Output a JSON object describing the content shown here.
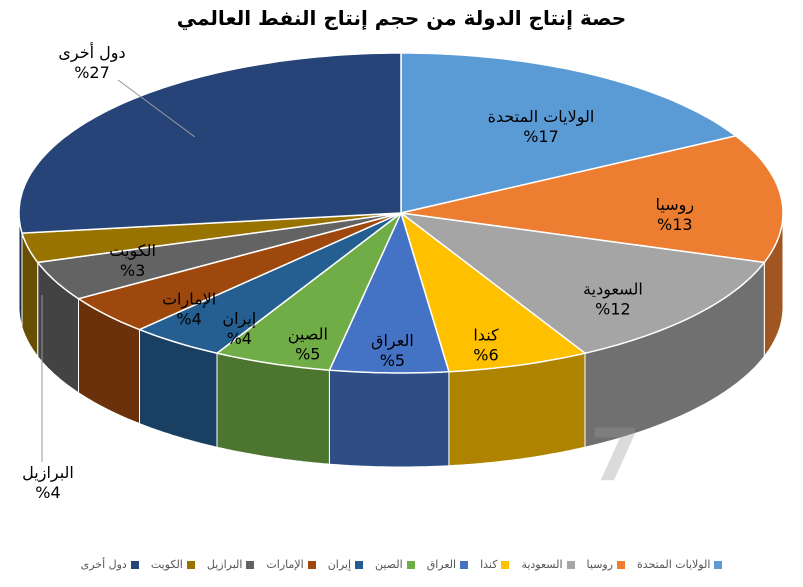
{
  "chart_data": {
    "type": "pie",
    "title": "حصة إنتاج الدولة من حجم إنتاج النفط العالمي",
    "slices": [
      {
        "name": "الولايات المتحدة",
        "value": 17,
        "label": "%17",
        "color": "#5B9BD5"
      },
      {
        "name": "روسيا",
        "value": 13,
        "label": "%13",
        "color": "#ED7D31"
      },
      {
        "name": "السعودية",
        "value": 12,
        "label": "%12",
        "color": "#A5A5A5"
      },
      {
        "name": "كندا",
        "value": 6,
        "label": "%6",
        "color": "#FFC000"
      },
      {
        "name": "العراق",
        "value": 5,
        "label": "%5",
        "color": "#4472C4"
      },
      {
        "name": "الصين",
        "value": 5,
        "label": "%5",
        "color": "#70AD47"
      },
      {
        "name": "إيران",
        "value": 4,
        "label": "%4",
        "color": "#255E91"
      },
      {
        "name": "الإمارات",
        "value": 4,
        "label": "%4",
        "color": "#9E480E"
      },
      {
        "name": "البرازيل",
        "value": 4,
        "label": "%4",
        "color": "#636363"
      },
      {
        "name": "الكويت",
        "value": 3,
        "label": "%3",
        "color": "#997300"
      },
      {
        "name": "دول أخرى",
        "value": 27,
        "label": "%27",
        "color": "#264478"
      }
    ],
    "legend": "bottom"
  }
}
